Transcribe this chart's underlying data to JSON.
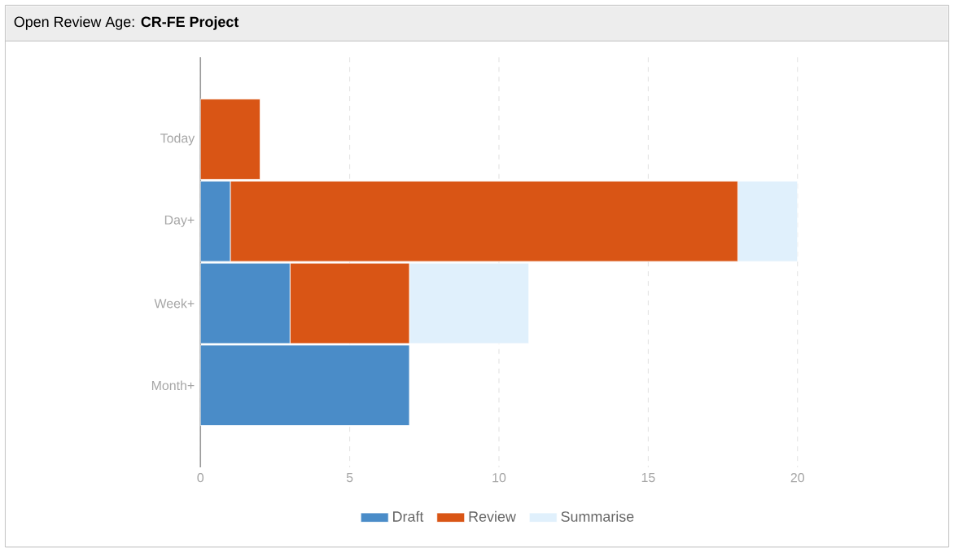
{
  "chart_data": {
    "type": "bar",
    "title": "Open Review Age: **CR-FE Project**",
    "orientation": "horizontal",
    "stacked": true,
    "categories": [
      "Today",
      "Day+",
      "Week+",
      "Month+"
    ],
    "series": [
      {
        "name": "Draft",
        "color": "#4a8cc8",
        "values": [
          0,
          1,
          3,
          7
        ]
      },
      {
        "name": "Review",
        "color": "#d95515",
        "values": [
          2,
          17,
          4,
          0
        ]
      },
      {
        "name": "Summarise",
        "color": "#e0f0fc",
        "values": [
          0,
          2,
          4,
          0
        ]
      }
    ],
    "xlim": [
      0,
      20
    ],
    "xticks": [
      0,
      5,
      10,
      15,
      20
    ],
    "grid": "x",
    "legend": "bottom"
  }
}
